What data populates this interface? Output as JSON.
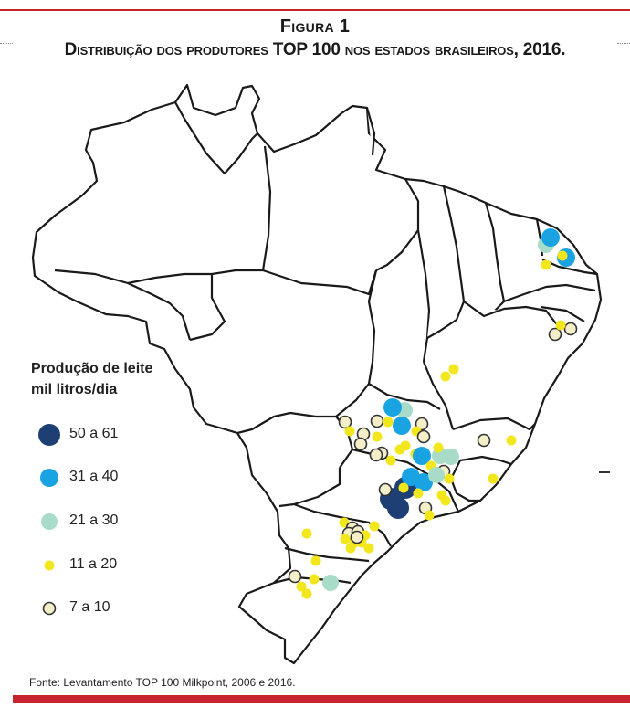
{
  "figure": {
    "label": "Figura 1",
    "title": "Distribuição dos produtores TOP 100 nos estados brasileiros, 2016.",
    "source": "Fonte: Levantamento TOP 100 Milkpoint, 2006 e 2016."
  },
  "colors": {
    "accent_red": "#c8242f",
    "outline": "#1a1a1a",
    "cat_50_61": "#1d3f73",
    "cat_31_40": "#1aa3e3",
    "cat_21_30": "#a8dcc8",
    "cat_11_20": "#f2e61c",
    "cat_7_10": "#f4efc9"
  },
  "legend": {
    "title_line1": "Produção de leite",
    "title_line2": "mil litros/dia",
    "items": [
      {
        "label": "50 a 61",
        "category": "cat_50_61"
      },
      {
        "label": "31 a 40",
        "category": "cat_31_40"
      },
      {
        "label": "21 a 30",
        "category": "cat_21_30"
      },
      {
        "label": "11 a 20",
        "category": "cat_11_20"
      },
      {
        "label": "7 a 10",
        "category": "cat_7_10"
      }
    ]
  }
}
